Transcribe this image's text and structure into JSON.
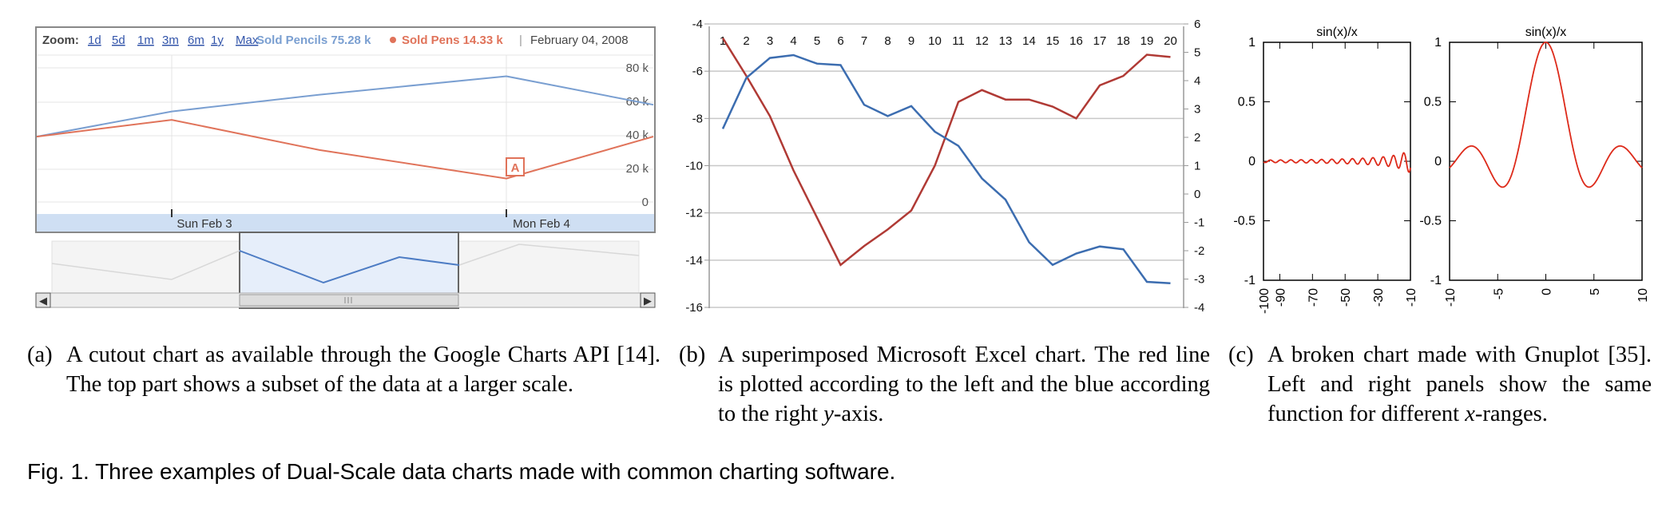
{
  "panel_a": {
    "zoom_label": "Zoom:",
    "zoom_links": [
      "1d",
      "5d",
      "1m",
      "3m",
      "6m",
      "1y",
      "Max"
    ],
    "legend_pencils": "Sold Pencils 75.28 k",
    "legend_pens": "Sold Pens 14.33 k",
    "date": "February 04, 2008",
    "separator": "|",
    "annotation_marker": "A",
    "dates": [
      "Sun Feb 3",
      "Mon Feb 4"
    ],
    "colors": {
      "pencils": "#7a9fd1",
      "pens": "#e0735a",
      "dates_bar": "#cfdff3"
    }
  },
  "panel_b": {
    "colors": {
      "red": "#b03a35",
      "blue": "#3c6db0"
    }
  },
  "panel_c": {
    "titles": [
      "sin(x)/x",
      "sin(x)/x"
    ],
    "color": "#dd2a1a"
  },
  "captions": {
    "a": {
      "label": "(a)",
      "text": "A cutout chart as available through the Google Charts API [14]. The top part shows a subset of the data at a larger scale."
    },
    "b": {
      "label": "(b)",
      "text_before": "A superimposed Microsoft Excel chart. The red line is plotted according to the left and the blue according to the right ",
      "text_italic": "y",
      "text_after": "-axis."
    },
    "c": {
      "label": "(c)",
      "text_before": "A broken chart made with Gnuplot [35]. Left and right panels show the same function for different ",
      "text_italic": "x",
      "text_after": "-ranges."
    }
  },
  "figure_caption": "Fig. 1. Three examples of Dual-Scale data charts made with common charting software.",
  "chart_data": [
    {
      "type": "line",
      "panel": "a-main",
      "x": [
        "",
        "Sun Feb 3",
        "",
        "Mon Feb 4",
        ""
      ],
      "ylim": [
        0,
        80
      ],
      "y_ticks": [
        "80 k",
        "60 k",
        "40 k",
        "20 k",
        "0"
      ],
      "grid": true,
      "series": [
        {
          "name": "Sold Pencils 75.28 k",
          "values": [
            39,
            54,
            64,
            75,
            58
          ]
        },
        {
          "name": "Sold Pens 14.33 k",
          "values": [
            39,
            49,
            31,
            14,
            39
          ]
        }
      ]
    },
    {
      "type": "area",
      "panel": "a-overview",
      "grid": false,
      "series": [
        {
          "values": [
            42,
            22,
            58,
            18,
            50,
            40,
            66,
            52
          ]
        }
      ]
    },
    {
      "type": "line",
      "panel": "b",
      "categories": [
        1,
        2,
        3,
        4,
        5,
        6,
        7,
        8,
        9,
        10,
        11,
        12,
        13,
        14,
        15,
        16,
        17,
        18,
        19,
        20
      ],
      "left_axis": {
        "ylim": [
          -16,
          -4
        ],
        "ticks": [
          -4,
          -6,
          -8,
          -10,
          -12,
          -14,
          -16
        ]
      },
      "right_axis": {
        "ylim": [
          -4,
          6
        ],
        "ticks": [
          6,
          5,
          4,
          3,
          2,
          1,
          0,
          -1,
          -2,
          -3,
          -4
        ]
      },
      "grid": true,
      "series": [
        {
          "axis": "left",
          "values": [
            -4.6,
            -6.2,
            -7.9,
            -10.2,
            -12.2,
            -14.2,
            -13.4,
            -12.7,
            -11.9,
            -10.0,
            -7.3,
            -6.8,
            -7.2,
            -7.2,
            -7.5,
            -8.0,
            -6.6,
            -6.2,
            -5.3,
            -5.4
          ]
        },
        {
          "axis": "right",
          "values": [
            2.3,
            4.1,
            4.8,
            4.9,
            4.6,
            4.55,
            3.15,
            2.75,
            3.1,
            2.2,
            1.7,
            0.55,
            -0.2,
            -1.7,
            -2.5,
            -2.1,
            -1.85,
            -1.95,
            -3.1,
            -3.15
          ]
        }
      ]
    },
    {
      "type": "line",
      "panel": "c-left",
      "title": "sin(x)/x",
      "xlim": [
        -100,
        -10
      ],
      "ylim": [
        -1,
        1
      ],
      "x_ticks": [
        -100,
        -90,
        -70,
        -50,
        -30,
        -10
      ],
      "y_ticks": [
        1,
        0.5,
        0,
        -0.5,
        -1
      ],
      "function": "sin(x)/x"
    },
    {
      "type": "line",
      "panel": "c-right",
      "title": "sin(x)/x",
      "xlim": [
        -10,
        10
      ],
      "ylim": [
        -1,
        1
      ],
      "x_ticks": [
        -10,
        -5,
        0,
        5,
        10
      ],
      "y_ticks": [
        1,
        0.5,
        0,
        -0.5,
        -1
      ],
      "function": "sin(x)/x"
    }
  ]
}
